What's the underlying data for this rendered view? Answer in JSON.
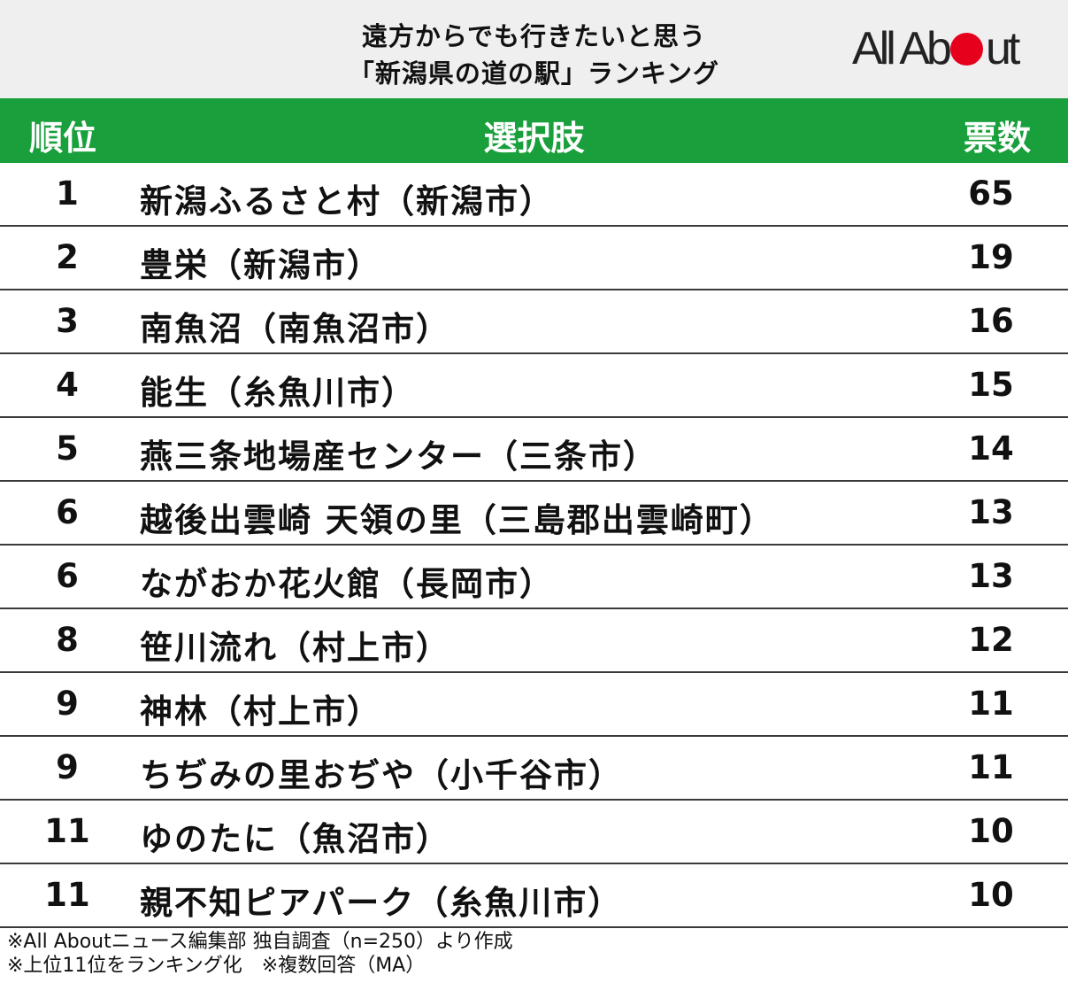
{
  "title": {
    "line1": "遠方からでも行きたいと思う",
    "line2": "「新潟県の道の駅」ランキング"
  },
  "logo": {
    "text_before": "All Ab",
    "text_after": "ut"
  },
  "colors": {
    "header_green": "#199f3c",
    "logo_red": "#e6001c",
    "header_bg": "#efefef"
  },
  "table": {
    "headers": {
      "rank": "順位",
      "choice": "選択肢",
      "votes": "票数"
    },
    "rows": [
      {
        "rank": "1",
        "name": "新潟ふるさと村（新潟市）",
        "votes": "65"
      },
      {
        "rank": "2",
        "name": "豊栄（新潟市）",
        "votes": "19"
      },
      {
        "rank": "3",
        "name": "南魚沼（南魚沼市）",
        "votes": "16"
      },
      {
        "rank": "4",
        "name": "能生（糸魚川市）",
        "votes": "15"
      },
      {
        "rank": "5",
        "name": "燕三条地場産センター（三条市）",
        "votes": "14"
      },
      {
        "rank": "6",
        "name": "越後出雲崎 天領の里（三島郡出雲崎町）",
        "votes": "13"
      },
      {
        "rank": "6",
        "name": "ながおか花火館（長岡市）",
        "votes": "13"
      },
      {
        "rank": "8",
        "name": "笹川流れ（村上市）",
        "votes": "12"
      },
      {
        "rank": "9",
        "name": "神林（村上市）",
        "votes": "11"
      },
      {
        "rank": "9",
        "name": "ちぢみの里おぢや（小千谷市）",
        "votes": "11"
      },
      {
        "rank": "11",
        "name": "ゆのたに（魚沼市）",
        "votes": "10"
      },
      {
        "rank": "11",
        "name": "親不知ピアパーク（糸魚川市）",
        "votes": "10"
      }
    ]
  },
  "footer": {
    "line1": "※All Aboutニュース編集部 独自調査（n=250）より作成",
    "line2": "※上位11位をランキング化　※複数回答（MA）"
  }
}
